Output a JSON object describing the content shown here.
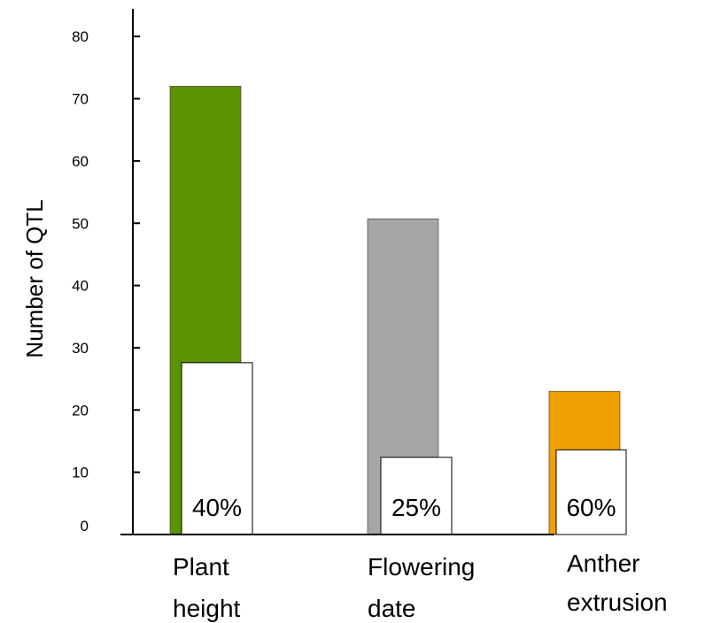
{
  "chart_data": {
    "type": "bar",
    "ylabel": "Number of QTL",
    "ylim": [
      0,
      80
    ],
    "yticks": [
      "0",
      "10",
      "20",
      "30",
      "40",
      "50",
      "60",
      "70",
      "80"
    ],
    "categories": [
      [
        "Plant",
        "height"
      ],
      [
        "Flowering",
        "date"
      ],
      [
        "Anther",
        "extrusion"
      ]
    ],
    "series": [
      {
        "values": [
          72,
          50.7,
          23
        ],
        "colors": [
          "#5a9200",
          "#a6a6a6",
          "#f0a000"
        ]
      },
      {
        "values": [
          27.6,
          12.4,
          13.6
        ],
        "color": "#ffffff"
      }
    ],
    "percent_labels": [
      "40%",
      "25%",
      "60%"
    ],
    "grid": false,
    "legend": "none"
  }
}
